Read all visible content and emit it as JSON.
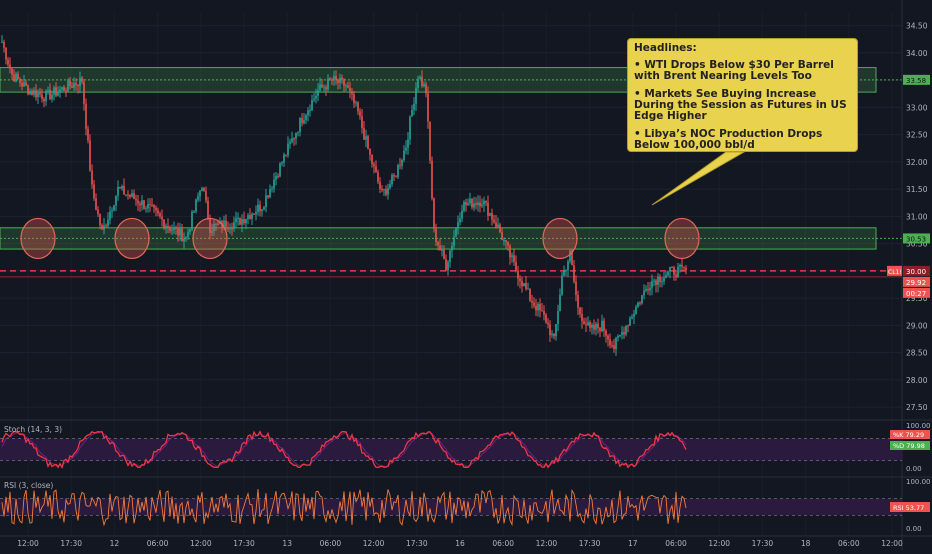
{
  "chart_data": [
    {
      "type": "candlestick",
      "symbol_label": "CL1!",
      "symbol_price": "29.92",
      "countdown": "00:27",
      "y_ticks": [
        "34.50",
        "34.00",
        "33.50",
        "33.00",
        "32.50",
        "32.00",
        "31.50",
        "31.00",
        "30.50",
        "30.00",
        "29.50",
        "29.00",
        "28.50",
        "28.00",
        "27.50"
      ],
      "x_ticks": [
        "12:00",
        "17:30",
        "12",
        "06:00",
        "12:00",
        "17:30",
        "13",
        "06:00",
        "12:00",
        "17:30",
        "16",
        "06:00",
        "12:00",
        "17:30",
        "17",
        "06:00",
        "12:00",
        "17:30",
        "18",
        "06:00",
        "12:00"
      ],
      "ylim": [
        27.3,
        34.75
      ],
      "zones": [
        {
          "label": "33.58",
          "low": 33.28,
          "high": 33.73
        },
        {
          "label": "30.53",
          "low": 30.4,
          "high": 30.79
        }
      ],
      "dashed_level": 30.0,
      "highlight_circle_x": [
        18,
        65,
        104,
        279,
        340
      ],
      "anchors": [
        [
          0,
          34.2
        ],
        [
          5,
          33.6
        ],
        [
          14,
          33.3
        ],
        [
          22,
          33.2
        ],
        [
          34,
          33.4
        ],
        [
          40,
          33.5
        ],
        [
          45,
          31.5
        ],
        [
          50,
          30.7
        ],
        [
          58,
          31.5
        ],
        [
          72,
          31.2
        ],
        [
          84,
          30.8
        ],
        [
          92,
          30.6
        ],
        [
          100,
          31.6
        ],
        [
          104,
          30.8
        ],
        [
          118,
          30.9
        ],
        [
          130,
          31.2
        ],
        [
          140,
          32.0
        ],
        [
          150,
          32.8
        ],
        [
          158,
          33.3
        ],
        [
          165,
          33.5
        ],
        [
          172,
          33.4
        ],
        [
          178,
          32.9
        ],
        [
          184,
          32.1
        ],
        [
          190,
          31.4
        ],
        [
          196,
          31.7
        ],
        [
          202,
          32.3
        ],
        [
          208,
          33.6
        ],
        [
          212,
          33.3
        ],
        [
          216,
          30.7
        ],
        [
          222,
          30.1
        ],
        [
          230,
          31.2
        ],
        [
          240,
          31.3
        ],
        [
          248,
          30.8
        ],
        [
          256,
          30.1
        ],
        [
          264,
          29.5
        ],
        [
          272,
          29.1
        ],
        [
          276,
          28.7
        ],
        [
          280,
          29.9
        ],
        [
          284,
          30.3
        ],
        [
          288,
          29.3
        ],
        [
          294,
          28.9
        ],
        [
          300,
          29.0
        ],
        [
          306,
          28.6
        ],
        [
          312,
          29.0
        ],
        [
          318,
          29.4
        ],
        [
          324,
          29.8
        ],
        [
          330,
          29.9
        ],
        [
          336,
          30.0
        ],
        [
          342,
          30.0
        ]
      ],
      "stoch": {
        "label": "Stoch (14, 3, 3)",
        "k_label": "%K",
        "k_value": "79.29",
        "d_label": "%D",
        "d_value": "79.98",
        "ticks": [
          "100.00",
          "0.00"
        ],
        "ylim": [
          0,
          100
        ]
      },
      "rsi": {
        "label": "RSI (3, close)",
        "value": "53.77",
        "ticks": [
          "100.00",
          "0.00"
        ],
        "ylim": [
          0,
          100
        ]
      }
    }
  ],
  "headlines": {
    "title": "Headlines:",
    "items": [
      "• WTI Drops Below $30 Per Barrel with Brent Nearing Levels Too",
      "• Markets See Buying Increase During the Session as Futures in US Edge Higher",
      "• Libya’s NOC Production Drops Below 100,000 bbl/d"
    ]
  },
  "colors": {
    "background": "#131722",
    "bull": "#26a69a",
    "bear": "#ef5350",
    "zone": "#4caf50",
    "dashed": "#f23645",
    "stoch_line": "#f23645",
    "rsi_line": "#f57c3a",
    "panel_fill": "#2a1a3d"
  }
}
